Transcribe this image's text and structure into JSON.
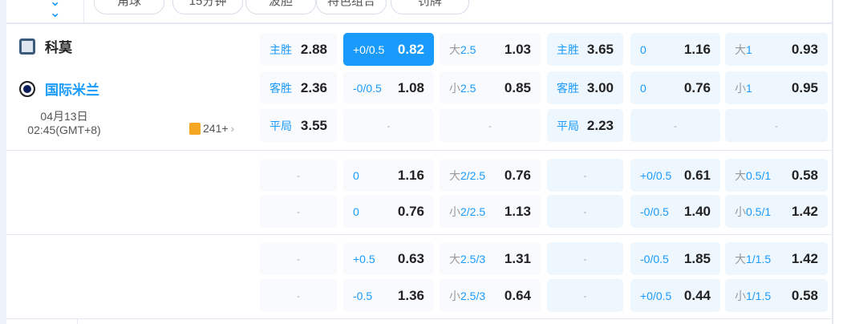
{
  "filters": [
    "角球",
    "15分钟",
    "波胆",
    "特色组合",
    "罚牌"
  ],
  "match": {
    "home": "科莫",
    "away": "国际米兰",
    "date": "04月13日",
    "time": "02:45(GMT+8)",
    "more_count": "241+",
    "accent": "#1a9bfc"
  },
  "rows": [
    [
      {
        "label": "主胜",
        "odds": "2.88"
      },
      {
        "label": "+0/0.5",
        "odds": "0.82",
        "selected": true
      },
      {
        "pre": "大",
        "label": "2.5",
        "odds": "1.03"
      },
      {
        "label": "主胜",
        "odds": "3.65"
      },
      {
        "label": "0",
        "odds": "1.16"
      },
      {
        "pre": "大",
        "label": "1",
        "odds": "0.93"
      }
    ],
    [
      {
        "label": "客胜",
        "odds": "2.36"
      },
      {
        "label": "-0/0.5",
        "odds": "1.08"
      },
      {
        "pre": "小",
        "label": "2.5",
        "odds": "0.85"
      },
      {
        "label": "客胜",
        "odds": "3.00"
      },
      {
        "label": "0",
        "odds": "0.76"
      },
      {
        "pre": "小",
        "label": "1",
        "odds": "0.95"
      }
    ],
    [
      {
        "label": "平局",
        "odds": "3.55"
      },
      {
        "dash": "-"
      },
      {
        "dash": "-"
      },
      {
        "label": "平局",
        "odds": "2.23"
      },
      {
        "dash": "-"
      },
      {
        "dash": "-"
      }
    ],
    [
      {
        "dash": "-"
      },
      {
        "label": "0",
        "odds": "1.16"
      },
      {
        "pre": "大",
        "label": "2/2.5",
        "odds": "0.76"
      },
      {
        "dash": "-"
      },
      {
        "label": "+0/0.5",
        "odds": "0.61"
      },
      {
        "pre": "大",
        "label": "0.5/1",
        "odds": "0.58"
      }
    ],
    [
      {
        "dash": "-"
      },
      {
        "label": "0",
        "odds": "0.76"
      },
      {
        "pre": "小",
        "label": "2/2.5",
        "odds": "1.13"
      },
      {
        "dash": "-"
      },
      {
        "label": "-0/0.5",
        "odds": "1.40"
      },
      {
        "pre": "小",
        "label": "0.5/1",
        "odds": "1.42"
      }
    ],
    [
      {
        "dash": "-"
      },
      {
        "label": "+0.5",
        "odds": "0.63"
      },
      {
        "pre": "大",
        "label": "2.5/3",
        "odds": "1.31"
      },
      {
        "dash": "-"
      },
      {
        "label": "-0/0.5",
        "odds": "1.85"
      },
      {
        "pre": "大",
        "label": "1/1.5",
        "odds": "1.42"
      }
    ],
    [
      {
        "dash": "-"
      },
      {
        "label": "-0.5",
        "odds": "1.36"
      },
      {
        "pre": "小",
        "label": "2.5/3",
        "odds": "0.64"
      },
      {
        "dash": "-"
      },
      {
        "label": "+0/0.5",
        "odds": "0.44"
      },
      {
        "pre": "小",
        "label": "1/1.5",
        "odds": "0.58"
      }
    ]
  ]
}
